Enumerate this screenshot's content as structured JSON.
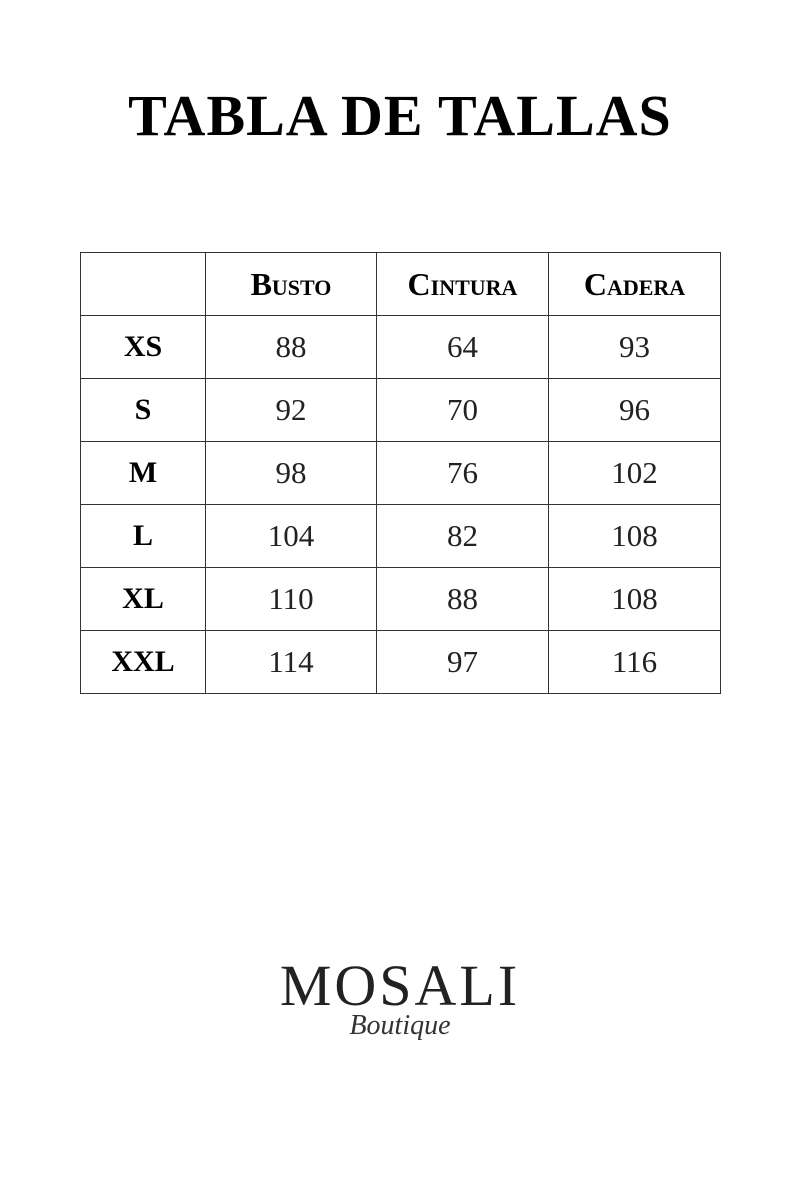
{
  "title": "TABLA DE TALLAS",
  "table": {
    "headers": [
      "",
      "Busto",
      "Cintura",
      "Cadera"
    ],
    "rows": [
      {
        "size": "XS",
        "busto": "88",
        "cintura": "64",
        "cadera": "93"
      },
      {
        "size": "S",
        "busto": "92",
        "cintura": "70",
        "cadera": "96"
      },
      {
        "size": "M",
        "busto": "98",
        "cintura": "76",
        "cadera": "102"
      },
      {
        "size": "L",
        "busto": "104",
        "cintura": "82",
        "cadera": "108"
      },
      {
        "size": "XL",
        "busto": "110",
        "cintura": "88",
        "cadera": "108"
      },
      {
        "size": "XXL",
        "busto": "114",
        "cintura": "97",
        "cadera": "116"
      }
    ]
  },
  "logo": {
    "name": "MOSALI",
    "subtitle": "Boutique"
  }
}
